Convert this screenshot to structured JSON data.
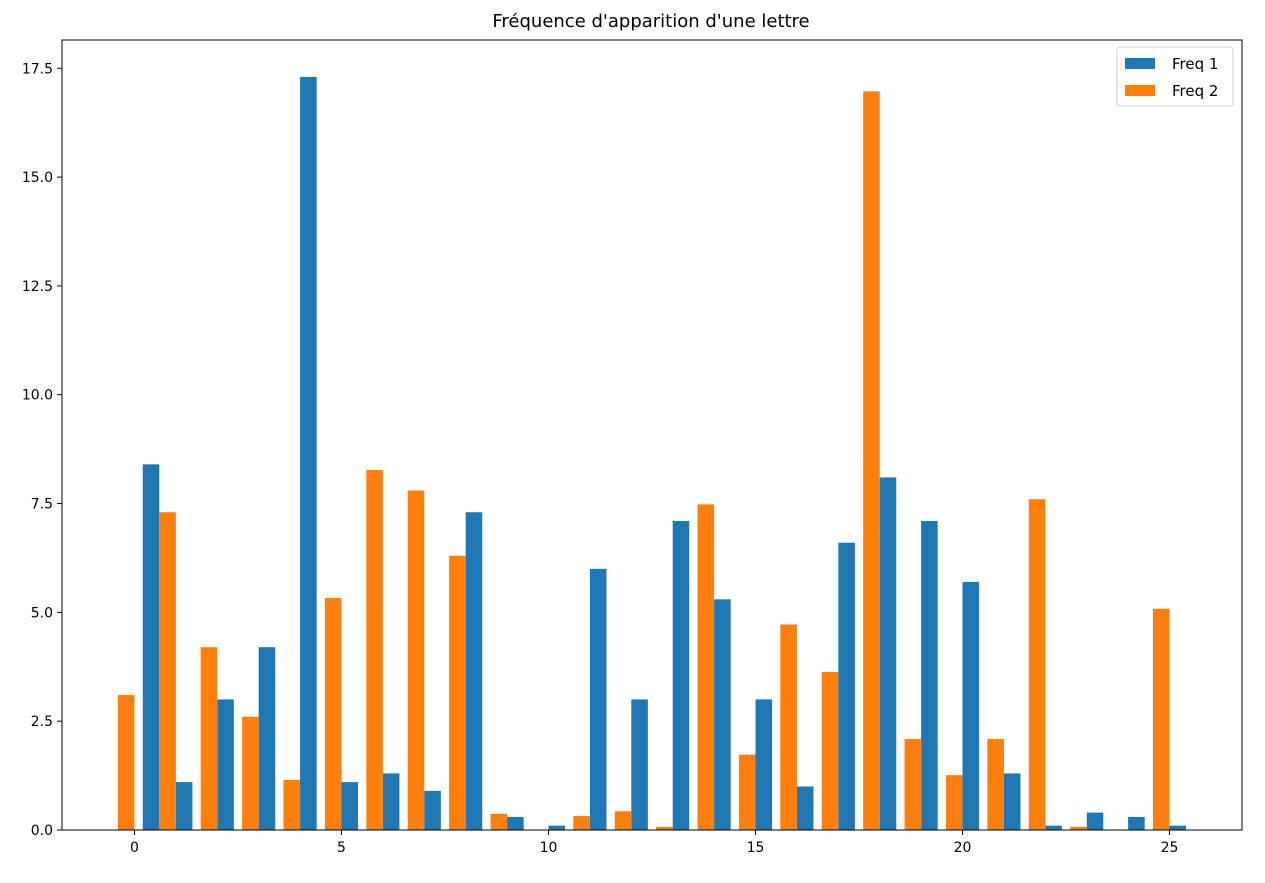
{
  "chart_data": {
    "type": "bar",
    "title": "Fréquence d'apparition d'une lettre",
    "xlabel": "",
    "ylabel": "",
    "xlim": [
      -1.75,
      26.75
    ],
    "ylim": [
      0,
      18.15
    ],
    "x_ticks": [
      0,
      5,
      10,
      15,
      20,
      25
    ],
    "x_tick_labels": [
      "0",
      "5",
      "10",
      "15",
      "20",
      "25"
    ],
    "y_ticks": [
      0,
      2.5,
      5,
      7.5,
      10,
      12.5,
      15,
      17.5
    ],
    "y_tick_labels": [
      "0.0",
      "2.5",
      "5.0",
      "7.5",
      "10.0",
      "12.5",
      "15.0",
      "17.5"
    ],
    "grid": false,
    "legend_position": "top-right",
    "series": [
      {
        "name": "Freq 1",
        "color": "#1f77b4",
        "x": [
          0.4,
          1.2,
          2.2,
          3.2,
          4.2,
          5.2,
          6.2,
          7.2,
          8.2,
          9.2,
          10.2,
          11.2,
          12.2,
          13.2,
          14.2,
          15.2,
          16.2,
          17.2,
          18.2,
          19.2,
          20.2,
          21.2,
          22.2,
          23.2,
          24.2,
          25.2
        ],
        "values": [
          8.4,
          1.1,
          3.0,
          4.2,
          17.3,
          1.1,
          1.3,
          0.9,
          7.3,
          0.3,
          0.1,
          6.0,
          3.0,
          7.1,
          5.3,
          3.0,
          1.0,
          6.6,
          8.1,
          7.1,
          5.7,
          1.3,
          0.1,
          0.4,
          0.3,
          0.1
        ]
      },
      {
        "name": "Freq 2",
        "color": "#ff7f0e",
        "x": [
          -0.2,
          0.8,
          1.8,
          2.8,
          3.8,
          4.8,
          5.8,
          6.8,
          7.8,
          8.8,
          9.8,
          10.8,
          11.8,
          12.8,
          13.8,
          14.8,
          15.8,
          16.8,
          17.8,
          18.8,
          19.8,
          20.8,
          21.8,
          22.8,
          23.8,
          24.8
        ],
        "values": [
          3.1,
          7.3,
          4.2,
          2.6,
          1.15,
          5.33,
          8.27,
          7.8,
          6.3,
          0.37,
          0.0,
          0.32,
          0.43,
          0.07,
          7.48,
          1.73,
          4.72,
          3.63,
          16.97,
          2.09,
          1.26,
          2.09,
          7.6,
          0.07,
          0.0,
          5.08
        ]
      }
    ]
  }
}
